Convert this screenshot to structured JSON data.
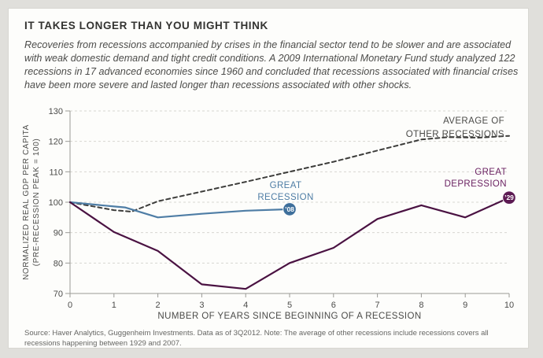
{
  "header": {
    "title": "IT TAKES LONGER THAN YOU MIGHT THINK",
    "description": "Recoveries from recessions accompanied by crises in the financial sector tend to be slower and are associated with weak domestic demand and tight credit conditions. A 2009 International Monetary Fund study analyzed 122 recessions in 17 advanced economies since 1960 and concluded that recessions associated with financial crises have been more severe and lasted longer than recessions associated with other shocks."
  },
  "chart_data": {
    "type": "line",
    "xlabel": "NUMBER OF YEARS SINCE BEGINNING OF A RECESSION",
    "ylabel_line1": "NORMALIZED REAL GDP PER CAPITA",
    "ylabel_line2": "(PRE-RECESSION PEAK = 100)",
    "xlim": [
      0,
      10
    ],
    "ylim": [
      70,
      130
    ],
    "x_ticks": [
      0,
      1,
      2,
      3,
      4,
      5,
      6,
      7,
      8,
      9,
      10
    ],
    "y_ticks": [
      130,
      120,
      110,
      100,
      90,
      80,
      70
    ],
    "grid": "horizontal-dashed",
    "legend_position": "inline-labels",
    "series": [
      {
        "name": "AVERAGE OF OTHER RECESSIONS",
        "style": "dashed",
        "color": "#3d3d3b",
        "points": [
          [
            0,
            100
          ],
          [
            1,
            97.4
          ],
          [
            1.4,
            96.9
          ],
          [
            2,
            100.3
          ],
          [
            3,
            103.5
          ],
          [
            4,
            106.7
          ],
          [
            5,
            110
          ],
          [
            6,
            113.3
          ],
          [
            7,
            117
          ],
          [
            8,
            120.6
          ],
          [
            8.6,
            121.4
          ],
          [
            9.3,
            121.2
          ],
          [
            10,
            121.8
          ]
        ]
      },
      {
        "name": "GREAT RECESSION",
        "style": "solid",
        "color": "#4e7da5",
        "badge": "’08",
        "badge_color": "#3e6f9b",
        "points": [
          [
            0,
            100
          ],
          [
            1,
            98.6
          ],
          [
            1.25,
            98.3
          ],
          [
            2,
            95
          ],
          [
            3,
            96.2
          ],
          [
            4,
            97.2
          ],
          [
            5,
            97.7
          ]
        ]
      },
      {
        "name": "GREAT DEPRESSION",
        "style": "solid",
        "color": "#4a1242",
        "badge": "’29",
        "badge_color": "#5c1a52",
        "points": [
          [
            0,
            100
          ],
          [
            1,
            90.2
          ],
          [
            2,
            84
          ],
          [
            3,
            73
          ],
          [
            4,
            71.5
          ],
          [
            5,
            80
          ],
          [
            6,
            85
          ],
          [
            7,
            94.5
          ],
          [
            8,
            99
          ],
          [
            9,
            95
          ],
          [
            10,
            101.5
          ]
        ]
      }
    ],
    "annotations": {
      "average": {
        "line1": "AVERAGE OF",
        "line2": "OTHER RECESSIONS"
      },
      "recession": {
        "line1": "GREAT",
        "line2": "RECESSION"
      },
      "depression": {
        "line1": "GREAT",
        "line2": "DEPRESSION"
      }
    }
  },
  "footer": {
    "source": "Source: Haver Analytics, Guggenheim Investments. Data as of 3Q2012. Note: The average of other recessions include recessions covers all recessions happening between 1929 and 2007."
  }
}
